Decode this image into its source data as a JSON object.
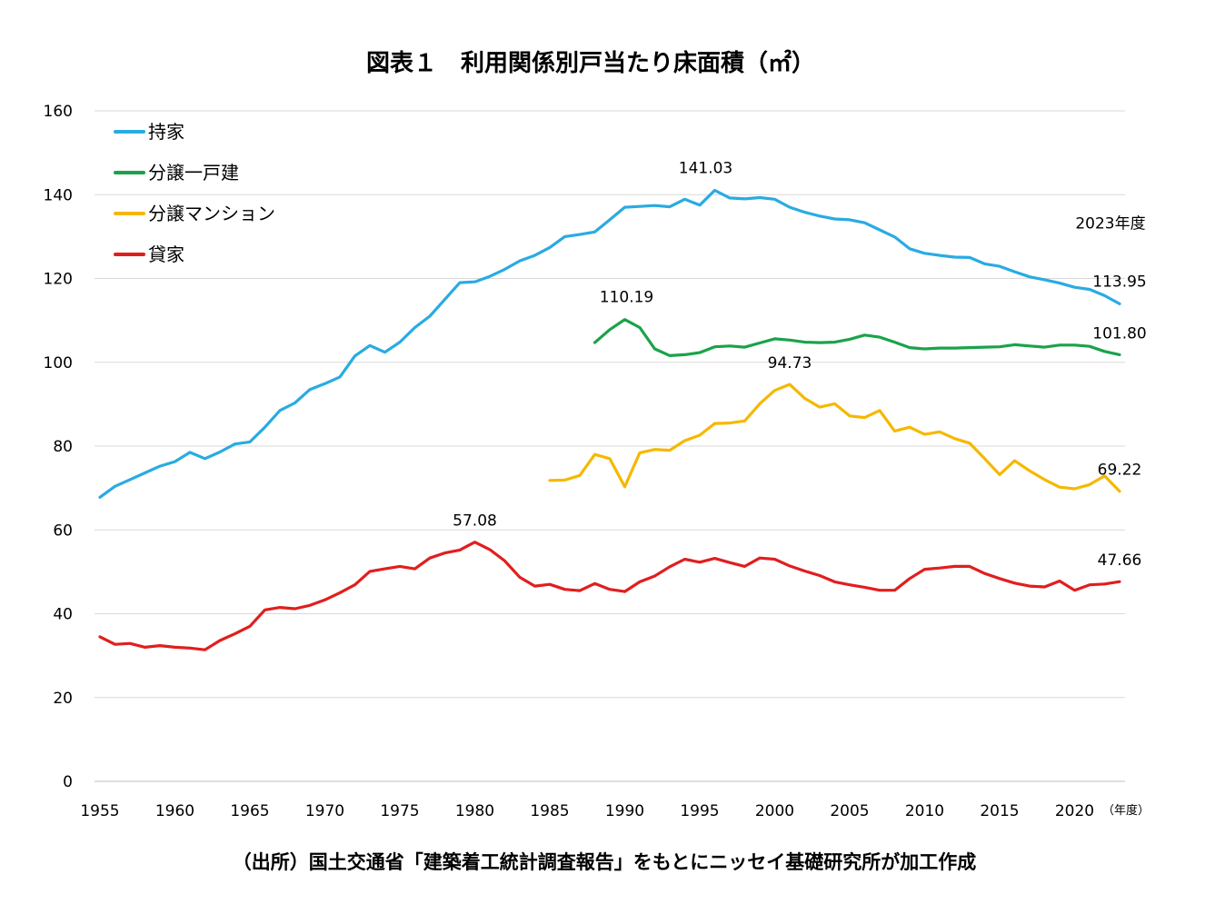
{
  "chart_data": {
    "type": "line",
    "title": "図表１　利用関係別戸当たり床面積（㎡）",
    "xlabel": "（年度）",
    "ylabel": "",
    "xlim": [
      1955,
      2023
    ],
    "ylim": [
      0,
      160
    ],
    "y_ticks": [
      "0",
      "20",
      "40",
      "60",
      "80",
      "100",
      "120",
      "140",
      "160"
    ],
    "x_ticks": [
      "1955",
      "1960",
      "1965",
      "1970",
      "1975",
      "1980",
      "1985",
      "1990",
      "1995",
      "2000",
      "2005",
      "2010",
      "2015",
      "2020"
    ],
    "grid": true,
    "legend_position": "top-left",
    "series": [
      {
        "name": "持家",
        "color": "#29abe2",
        "x": [
          1955,
          1956,
          1957,
          1958,
          1959,
          1960,
          1961,
          1962,
          1963,
          1964,
          1965,
          1966,
          1967,
          1968,
          1969,
          1970,
          1971,
          1972,
          1973,
          1974,
          1975,
          1976,
          1977,
          1978,
          1979,
          1980,
          1981,
          1982,
          1983,
          1984,
          1985,
          1986,
          1987,
          1988,
          1989,
          1990,
          1991,
          1992,
          1993,
          1994,
          1995,
          1996,
          1997,
          1998,
          1999,
          2000,
          2001,
          2002,
          2003,
          2004,
          2005,
          2006,
          2007,
          2008,
          2009,
          2010,
          2011,
          2012,
          2013,
          2014,
          2015,
          2016,
          2017,
          2018,
          2019,
          2020,
          2021,
          2022,
          2023
        ],
        "values": [
          67.8,
          70.4,
          72.0,
          73.6,
          75.2,
          76.3,
          78.5,
          77.0,
          78.6,
          80.5,
          81.0,
          84.5,
          88.5,
          90.3,
          93.5,
          94.9,
          96.5,
          101.5,
          104.0,
          102.4,
          104.8,
          108.3,
          111.0,
          115.0,
          119.0,
          119.2,
          120.5,
          122.2,
          124.2,
          125.5,
          127.4,
          130.0,
          130.5,
          131.1,
          134.0,
          137.0,
          137.2,
          137.4,
          137.1,
          138.9,
          137.5,
          141.03,
          139.2,
          139.0,
          139.3,
          138.9,
          137.0,
          135.8,
          134.9,
          134.2,
          134.0,
          133.3,
          131.6,
          129.9,
          127.1,
          126.0,
          125.5,
          125.1,
          125.0,
          123.5,
          122.9,
          121.6,
          120.4,
          119.7,
          118.9,
          117.9,
          117.4,
          115.9,
          113.95
        ]
      },
      {
        "name": "分譲一戸建",
        "color": "#1aa34a",
        "x": [
          1988,
          1989,
          1990,
          1991,
          1992,
          1993,
          1994,
          1995,
          1996,
          1997,
          1998,
          1999,
          2000,
          2001,
          2002,
          2003,
          2004,
          2005,
          2006,
          2007,
          2008,
          2009,
          2010,
          2011,
          2012,
          2013,
          2014,
          2015,
          2016,
          2017,
          2018,
          2019,
          2020,
          2021,
          2022,
          2023
        ],
        "values": [
          104.7,
          107.8,
          110.19,
          108.3,
          103.2,
          101.6,
          101.8,
          102.3,
          103.7,
          103.9,
          103.6,
          104.6,
          105.6,
          105.3,
          104.8,
          104.7,
          104.8,
          105.5,
          106.5,
          106.0,
          104.8,
          103.5,
          103.2,
          103.4,
          103.4,
          103.5,
          103.6,
          103.7,
          104.2,
          103.9,
          103.6,
          104.1,
          104.1,
          103.8,
          102.6,
          101.8
        ]
      },
      {
        "name": "分譲マンション",
        "color": "#f5b800",
        "x": [
          1985,
          1986,
          1987,
          1988,
          1989,
          1990,
          1991,
          1992,
          1993,
          1994,
          1995,
          1996,
          1997,
          1998,
          1999,
          2000,
          2001,
          2002,
          2003,
          2004,
          2005,
          2006,
          2007,
          2008,
          2009,
          2010,
          2011,
          2012,
          2013,
          2014,
          2015,
          2016,
          2017,
          2018,
          2019,
          2020,
          2021,
          2022,
          2023
        ],
        "values": [
          71.8,
          71.9,
          73.0,
          78.0,
          77.0,
          70.3,
          78.4,
          79.2,
          79.0,
          81.3,
          82.6,
          85.4,
          85.5,
          86.0,
          90.1,
          93.3,
          94.73,
          91.4,
          89.3,
          90.1,
          87.2,
          86.8,
          88.5,
          83.6,
          84.5,
          82.8,
          83.4,
          81.8,
          80.7,
          77.0,
          73.2,
          76.5,
          74.1,
          72.0,
          70.2,
          69.8,
          70.8,
          72.9,
          69.22
        ]
      },
      {
        "name": "貸家",
        "color": "#e11e1e",
        "x": [
          1955,
          1956,
          1957,
          1958,
          1959,
          1960,
          1961,
          1962,
          1963,
          1964,
          1965,
          1966,
          1967,
          1968,
          1969,
          1970,
          1971,
          1972,
          1973,
          1974,
          1975,
          1976,
          1977,
          1978,
          1979,
          1980,
          1981,
          1982,
          1983,
          1984,
          1985,
          1986,
          1987,
          1988,
          1989,
          1990,
          1991,
          1992,
          1993,
          1994,
          1995,
          1996,
          1997,
          1998,
          1999,
          2000,
          2001,
          2002,
          2003,
          2004,
          2005,
          2006,
          2007,
          2008,
          2009,
          2010,
          2011,
          2012,
          2013,
          2014,
          2015,
          2016,
          2017,
          2018,
          2019,
          2020,
          2021,
          2022,
          2023
        ],
        "values": [
          34.5,
          32.7,
          32.9,
          32.0,
          32.4,
          32.0,
          31.8,
          31.4,
          33.6,
          35.2,
          37.0,
          40.9,
          41.5,
          41.2,
          42.0,
          43.3,
          45.0,
          46.9,
          50.1,
          50.7,
          51.3,
          50.7,
          53.3,
          54.5,
          55.2,
          57.08,
          55.3,
          52.6,
          48.7,
          46.6,
          47.0,
          45.8,
          45.5,
          47.2,
          45.8,
          45.3,
          47.6,
          49.0,
          51.2,
          53.0,
          52.3,
          53.2,
          52.2,
          51.3,
          53.3,
          53.0,
          51.4,
          50.2,
          49.1,
          47.6,
          46.9,
          46.3,
          45.6,
          45.6,
          48.4,
          50.6,
          50.9,
          51.3,
          51.3,
          49.6,
          48.4,
          47.3,
          46.6,
          46.4,
          47.8,
          45.6,
          46.9,
          47.1,
          47.66
        ]
      }
    ],
    "annotations": [
      {
        "series": "持家",
        "x": 1996,
        "text": "141.03"
      },
      {
        "series": "持家",
        "x": 2023,
        "text": "2023年度"
      },
      {
        "series": "持家",
        "x": 2023,
        "text": "113.95"
      },
      {
        "series": "分譲一戸建",
        "x": 1990,
        "text": "110.19"
      },
      {
        "series": "分譲一戸建",
        "x": 2023,
        "text": "101.80"
      },
      {
        "series": "分譲マンション",
        "x": 2001,
        "text": "94.73"
      },
      {
        "series": "分譲マンション",
        "x": 2023,
        "text": "69.22"
      },
      {
        "series": "貸家",
        "x": 1980,
        "text": "57.08"
      },
      {
        "series": "貸家",
        "x": 2023,
        "text": "47.66"
      }
    ],
    "source": "（出所）国土交通省「建築着工統計調査報告」をもとにニッセイ基礎研究所が加工作成"
  }
}
